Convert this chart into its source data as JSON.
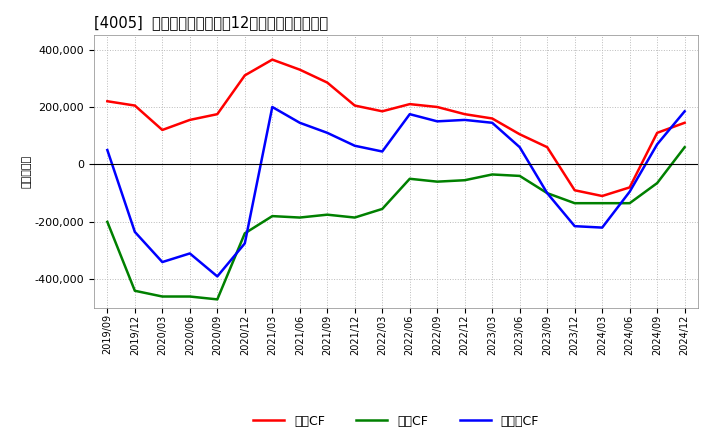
{
  "title": "[4005]  キャッシュフローの12か月移動合計の推移",
  "ylabel": "（百万円）",
  "ylim": [
    -500000,
    450000
  ],
  "yticks": [
    -400000,
    -200000,
    0,
    200000,
    400000
  ],
  "background_color": "#ffffff",
  "grid_color": "#bbbbbb",
  "dates": [
    "2019/09",
    "2019/12",
    "2020/03",
    "2020/06",
    "2020/09",
    "2020/12",
    "2021/03",
    "2021/06",
    "2021/09",
    "2021/12",
    "2022/03",
    "2022/06",
    "2022/09",
    "2022/12",
    "2023/03",
    "2023/06",
    "2023/09",
    "2023/12",
    "2024/03",
    "2024/06",
    "2024/09",
    "2024/12"
  ],
  "operating_cf": [
    220000,
    205000,
    120000,
    155000,
    175000,
    310000,
    365000,
    330000,
    285000,
    205000,
    185000,
    210000,
    200000,
    175000,
    160000,
    105000,
    60000,
    -90000,
    -110000,
    -80000,
    110000,
    145000
  ],
  "investing_cf": [
    -200000,
    -440000,
    -460000,
    -460000,
    -470000,
    -240000,
    -180000,
    -185000,
    -175000,
    -185000,
    -155000,
    -50000,
    -60000,
    -55000,
    -35000,
    -40000,
    -100000,
    -135000,
    -135000,
    -135000,
    -65000,
    60000
  ],
  "free_cf": [
    50000,
    -235000,
    -340000,
    -310000,
    -390000,
    -275000,
    200000,
    145000,
    110000,
    65000,
    45000,
    175000,
    150000,
    155000,
    145000,
    60000,
    -100000,
    -215000,
    -220000,
    -95000,
    70000,
    185000
  ],
  "operating_color": "#ff0000",
  "investing_color": "#008000",
  "free_color": "#0000ff",
  "line_width": 1.8,
  "legend_labels": [
    "営業CF",
    "投資CF",
    "フリーCF"
  ]
}
